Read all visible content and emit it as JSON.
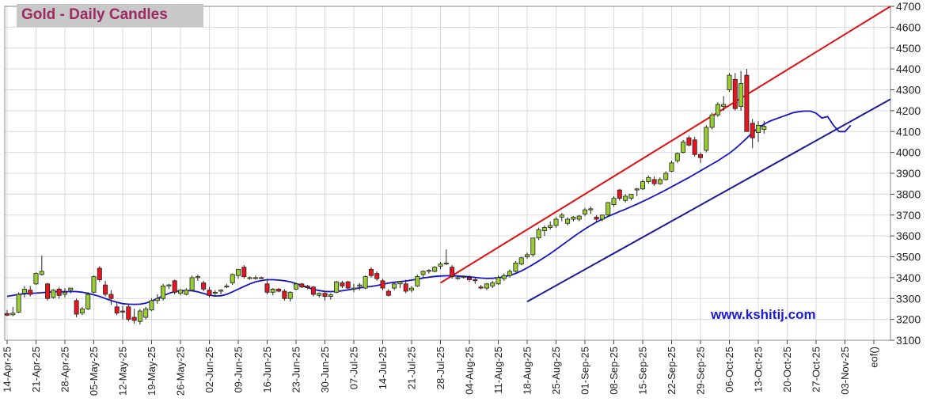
{
  "chart_data": {
    "type": "candlestick",
    "title": "Gold - Daily Candles",
    "watermark": "www.kshitij.com",
    "ylim": [
      3100,
      4700
    ],
    "yticks": [
      3100,
      3200,
      3300,
      3400,
      3500,
      3600,
      3700,
      3800,
      3900,
      4000,
      4100,
      4200,
      4300,
      4400,
      4500,
      4600,
      4700
    ],
    "xtick_labels": [
      "14-Apr-25",
      "21-Apr-25",
      "28-Apr-25",
      "05-May-25",
      "12-May-25",
      "19-May-25",
      "26-May-25",
      "02-Jun-25",
      "09-Jun-25",
      "16-Jun-25",
      "23-Jun-25",
      "30-Jun-25",
      "07-Jul-25",
      "14-Jul-25",
      "21-Jul-25",
      "28-Jul-25",
      "04-Aug-25",
      "11-Aug-25",
      "18-Aug-25",
      "25-Aug-25",
      "01-Sep-25",
      "08-Sep-25",
      "15-Sep-25",
      "22-Sep-25",
      "29-Sep-25",
      "06-Oct-25",
      "13-Oct-25",
      "20-Oct-25",
      "27-Oct-25",
      "03-Nov-25",
      "eof()"
    ],
    "colors": {
      "up": "#9acd32",
      "down": "#e8141e",
      "ma": "#1515c8",
      "trend_upper": "#e01010",
      "trend_lower": "#1a1a99",
      "grid": "#d9d9d9",
      "title": "#9c2a63",
      "watermark": "#1a1adb"
    },
    "candles": [
      [
        3228,
        3245,
        3215,
        3220
      ],
      [
        3222,
        3260,
        3215,
        3230
      ],
      [
        3235,
        3330,
        3230,
        3320
      ],
      [
        3325,
        3360,
        3305,
        3345
      ],
      [
        3340,
        3360,
        3310,
        3320
      ],
      [
        3370,
        3425,
        3365,
        3420
      ],
      [
        3415,
        3505,
        3410,
        3430
      ],
      [
        3370,
        3375,
        3290,
        3300
      ],
      [
        3305,
        3345,
        3300,
        3340
      ],
      [
        3345,
        3355,
        3300,
        3315
      ],
      [
        3320,
        3350,
        3305,
        3330
      ],
      [
        3340,
        3350,
        3325,
        3350
      ],
      [
        3290,
        3300,
        3210,
        3225
      ],
      [
        3230,
        3260,
        3220,
        3250
      ],
      [
        3250,
        3330,
        3245,
        3320
      ],
      [
        3330,
        3410,
        3325,
        3405
      ],
      [
        3445,
        3455,
        3380,
        3390
      ],
      [
        3365,
        3385,
        3310,
        3320
      ],
      [
        3320,
        3340,
        3270,
        3300
      ],
      [
        3260,
        3285,
        3220,
        3230
      ],
      [
        3240,
        3265,
        3200,
        3235
      ],
      [
        3260,
        3270,
        3190,
        3200
      ],
      [
        3210,
        3250,
        3180,
        3195
      ],
      [
        3190,
        3250,
        3175,
        3240
      ],
      [
        3210,
        3260,
        3200,
        3250
      ],
      [
        3245,
        3300,
        3240,
        3290
      ],
      [
        3290,
        3320,
        3275,
        3300
      ],
      [
        3300,
        3370,
        3290,
        3360
      ],
      [
        3360,
        3370,
        3345,
        3365
      ],
      [
        3385,
        3390,
        3320,
        3330
      ],
      [
        3325,
        3345,
        3315,
        3340
      ],
      [
        3320,
        3350,
        3315,
        3340
      ],
      [
        3340,
        3410,
        3335,
        3400
      ],
      [
        3400,
        3415,
        3385,
        3405
      ],
      [
        3375,
        3385,
        3335,
        3345
      ],
      [
        3340,
        3355,
        3305,
        3315
      ],
      [
        3325,
        3340,
        3310,
        3330
      ],
      [
        3335,
        3345,
        3320,
        3340
      ],
      [
        3355,
        3370,
        3350,
        3360
      ],
      [
        3375,
        3420,
        3365,
        3415
      ],
      [
        3410,
        3440,
        3395,
        3440
      ],
      [
        3450,
        3460,
        3395,
        3405
      ],
      [
        3400,
        3405,
        3390,
        3400
      ],
      [
        3400,
        3410,
        3390,
        3400
      ],
      [
        3400,
        3405,
        3395,
        3398
      ],
      [
        3370,
        3395,
        3320,
        3330
      ],
      [
        3330,
        3350,
        3315,
        3345
      ],
      [
        3345,
        3350,
        3330,
        3335
      ],
      [
        3335,
        3345,
        3290,
        3300
      ],
      [
        3300,
        3335,
        3285,
        3330
      ],
      [
        3345,
        3375,
        3340,
        3370
      ],
      [
        3370,
        3375,
        3350,
        3355
      ],
      [
        3360,
        3365,
        3345,
        3352
      ],
      [
        3355,
        3360,
        3310,
        3320
      ],
      [
        3315,
        3330,
        3305,
        3325
      ],
      [
        3325,
        3335,
        3290,
        3310
      ],
      [
        3310,
        3325,
        3295,
        3318
      ],
      [
        3330,
        3385,
        3325,
        3380
      ],
      [
        3375,
        3385,
        3350,
        3360
      ],
      [
        3380,
        3385,
        3345,
        3350
      ],
      [
        3345,
        3370,
        3330,
        3350
      ],
      [
        3360,
        3375,
        3340,
        3365
      ],
      [
        3350,
        3410,
        3345,
        3405
      ],
      [
        3440,
        3450,
        3400,
        3410
      ],
      [
        3420,
        3430,
        3385,
        3395
      ],
      [
        3385,
        3395,
        3340,
        3350
      ],
      [
        3335,
        3345,
        3310,
        3315
      ],
      [
        3350,
        3375,
        3340,
        3370
      ],
      [
        3370,
        3385,
        3350,
        3380
      ],
      [
        3370,
        3390,
        3325,
        3335
      ],
      [
        3340,
        3360,
        3330,
        3350
      ],
      [
        3360,
        3415,
        3355,
        3405
      ],
      [
        3415,
        3435,
        3400,
        3430
      ],
      [
        3430,
        3440,
        3420,
        3435
      ],
      [
        3430,
        3455,
        3425,
        3450
      ],
      [
        3455,
        3475,
        3440,
        3465
      ],
      [
        3470,
        3535,
        3460,
        3470
      ],
      [
        3450,
        3460,
        3395,
        3405
      ],
      [
        3400,
        3410,
        3390,
        3400
      ],
      [
        3405,
        3410,
        3395,
        3405
      ],
      [
        3400,
        3410,
        3380,
        3390
      ],
      [
        3390,
        3400,
        3370,
        3385
      ],
      [
        3355,
        3365,
        3345,
        3350
      ],
      [
        3350,
        3375,
        3340,
        3370
      ],
      [
        3360,
        3385,
        3350,
        3375
      ],
      [
        3370,
        3410,
        3365,
        3400
      ],
      [
        3395,
        3420,
        3385,
        3410
      ],
      [
        3410,
        3440,
        3400,
        3430
      ],
      [
        3430,
        3480,
        3425,
        3470
      ],
      [
        3465,
        3500,
        3460,
        3495
      ],
      [
        3500,
        3520,
        3490,
        3510
      ],
      [
        3510,
        3580,
        3500,
        3590
      ],
      [
        3590,
        3640,
        3580,
        3630
      ],
      [
        3625,
        3650,
        3600,
        3640
      ],
      [
        3640,
        3670,
        3630,
        3650
      ],
      [
        3650,
        3690,
        3640,
        3680
      ],
      [
        3690,
        3710,
        3670,
        3700
      ],
      [
        3660,
        3690,
        3650,
        3680
      ],
      [
        3680,
        3695,
        3670,
        3690
      ],
      [
        3680,
        3700,
        3670,
        3695
      ],
      [
        3705,
        3735,
        3695,
        3725
      ],
      [
        3725,
        3740,
        3705,
        3730
      ],
      [
        3690,
        3700,
        3665,
        3680
      ],
      [
        3680,
        3700,
        3670,
        3700
      ],
      [
        3700,
        3760,
        3695,
        3760
      ],
      [
        3750,
        3790,
        3740,
        3780
      ],
      [
        3820,
        3825,
        3770,
        3780
      ],
      [
        3770,
        3800,
        3760,
        3790
      ],
      [
        3780,
        3800,
        3770,
        3800
      ],
      [
        3820,
        3830,
        3790,
        3825
      ],
      [
        3825,
        3870,
        3820,
        3860
      ],
      [
        3860,
        3890,
        3850,
        3880
      ],
      [
        3870,
        3885,
        3840,
        3850
      ],
      [
        3850,
        3880,
        3845,
        3870
      ],
      [
        3870,
        3910,
        3865,
        3900
      ],
      [
        3910,
        3960,
        3905,
        3950
      ],
      [
        3960,
        4000,
        3950,
        3995
      ],
      [
        4000,
        4060,
        3995,
        4050
      ],
      [
        4070,
        4080,
        4030,
        4035
      ],
      [
        4060,
        4075,
        3980,
        3990
      ],
      [
        3990,
        4000,
        3950,
        3975
      ],
      [
        4010,
        4130,
        4000,
        4120
      ],
      [
        4120,
        4190,
        4110,
        4180
      ],
      [
        4180,
        4240,
        4170,
        4230
      ],
      [
        4220,
        4270,
        4200,
        4230
      ],
      [
        4300,
        4380,
        4290,
        4370
      ],
      [
        4350,
        4380,
        4200,
        4210
      ],
      [
        4220,
        4390,
        4200,
        4330
      ],
      [
        4370,
        4400,
        4100,
        4100
      ],
      [
        4140,
        4160,
        4020,
        4070
      ],
      [
        4095,
        4150,
        4050,
        4130
      ],
      [
        4110,
        4150,
        4090,
        4125
      ]
    ],
    "moving_average": [
      3310,
      3315,
      3320,
      3322,
      3325,
      3326,
      3328,
      3330,
      3332,
      3333,
      3333,
      3333,
      3333,
      3330,
      3325,
      3318,
      3310,
      3300,
      3290,
      3282,
      3275,
      3273,
      3272,
      3273,
      3278,
      3288,
      3300,
      3313,
      3325,
      3333,
      3337,
      3338,
      3337,
      3332,
      3324,
      3316,
      3312,
      3313,
      3320,
      3332,
      3345,
      3358,
      3370,
      3380,
      3386,
      3390,
      3390,
      3388,
      3385,
      3380,
      3372,
      3362,
      3352,
      3344,
      3338,
      3334,
      3333,
      3334,
      3337,
      3341,
      3346,
      3351,
      3355,
      3358,
      3362,
      3368,
      3374,
      3378,
      3381,
      3384,
      3388,
      3393,
      3398,
      3402,
      3406,
      3408,
      3409,
      3409,
      3408,
      3406,
      3404,
      3401,
      3398,
      3396,
      3397,
      3400,
      3404,
      3411,
      3420,
      3432,
      3447,
      3463,
      3480,
      3497,
      3515,
      3535,
      3555,
      3575,
      3595,
      3615,
      3633,
      3650,
      3666,
      3680,
      3693,
      3705,
      3717,
      3728,
      3740,
      3752,
      3765,
      3778,
      3792,
      3806,
      3820,
      3835,
      3850,
      3865,
      3880,
      3896,
      3912,
      3928,
      3944,
      3960,
      3978,
      3996,
      4018,
      4042,
      4068,
      4095,
      4118,
      4135,
      4150,
      4160,
      4170,
      4180,
      4190,
      4195,
      4198,
      4198,
      4188,
      4165,
      4172,
      4130,
      4100,
      4100,
      4130
    ],
    "trendlines": [
      {
        "name": "upper",
        "from": [
          "28-Jul-25",
          3375
        ],
        "to": [
          "end",
          4700
        ]
      },
      {
        "name": "lower",
        "from": [
          "18-Aug-25",
          3285
        ],
        "to": [
          "end",
          4255
        ]
      }
    ]
  }
}
